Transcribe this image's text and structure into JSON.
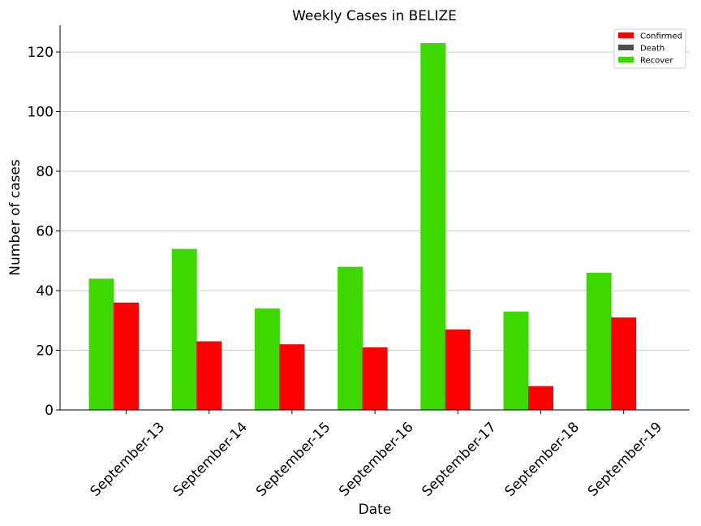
{
  "chart_data": {
    "type": "bar",
    "title": "Weekly Cases in BELIZE",
    "xlabel": "Date",
    "ylabel": "Number of cases",
    "categories": [
      "September-13",
      "September-14",
      "September-15",
      "September-16",
      "September-17",
      "September-18",
      "September-19"
    ],
    "series": [
      {
        "name": "Recover",
        "color": "#3dd800",
        "values": [
          44,
          54,
          34,
          48,
          123,
          33,
          46
        ]
      },
      {
        "name": "Confirmed",
        "color": "#ff0000",
        "values": [
          36,
          23,
          22,
          21,
          27,
          8,
          31
        ]
      },
      {
        "name": "Death",
        "color": "#4d4d4d",
        "values": [
          0,
          0,
          0,
          0,
          0,
          0,
          0
        ]
      }
    ],
    "legend": [
      "Confirmed",
      "Death",
      "Recover"
    ],
    "ylim": [
      0,
      129
    ],
    "yticks": [
      0,
      20,
      40,
      60,
      80,
      100,
      120
    ],
    "grid": "horizontal",
    "legend_position": "top-right"
  }
}
